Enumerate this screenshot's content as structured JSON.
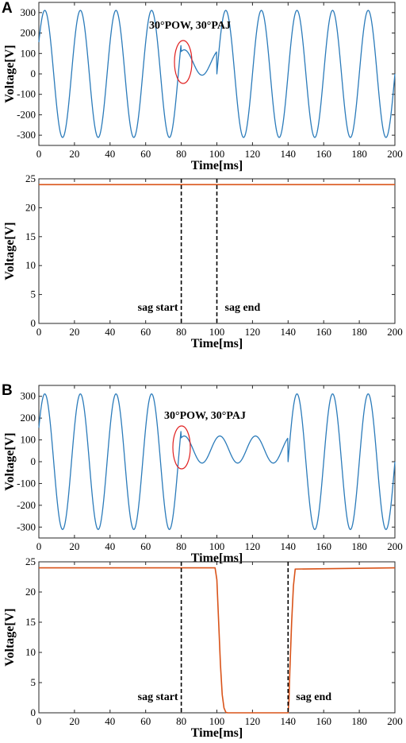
{
  "figure": {
    "panels": [
      "A",
      "B"
    ]
  },
  "chart_data": [
    {
      "type": "line",
      "panel": "A",
      "annotation": "30°POW, 30°PAJ",
      "xlabel": "Time[ms]",
      "ylabel": "Voltage[V]",
      "xlim": [
        0,
        200
      ],
      "ylim": [
        -350,
        350
      ],
      "xticks": [
        0,
        20,
        40,
        60,
        80,
        100,
        120,
        140,
        160,
        180,
        200
      ],
      "yticks": [
        -300,
        -200,
        -100,
        0,
        100,
        200,
        300
      ],
      "color": "#2b7bba",
      "series": [
        {
          "kind": "sine-sag",
          "amplitude": 311,
          "period_ms": 20,
          "phase_deg": 30,
          "sag_start_ms": 80,
          "sag_end_ms": 100,
          "sag_amplitude": 62,
          "sag_phase_deg": 60,
          "end_amplitude": 311
        }
      ]
    },
    {
      "type": "line",
      "panel": "A",
      "xlabel": "Time[ms]",
      "ylabel": "Voltage[V]",
      "xlim": [
        0,
        200
      ],
      "ylim": [
        0,
        25
      ],
      "xticks": [
        0,
        20,
        40,
        60,
        80,
        100,
        120,
        140,
        160,
        180,
        200
      ],
      "yticks": [
        0,
        5,
        10,
        15,
        20,
        25
      ],
      "color": "#d95319",
      "series": [
        {
          "x": [
            0,
            200
          ],
          "y": [
            24,
            24
          ]
        }
      ],
      "markers": [
        {
          "x": 80,
          "label": "sag start",
          "side": "left"
        },
        {
          "x": 100,
          "label": "sag end",
          "side": "right"
        }
      ]
    },
    {
      "type": "line",
      "panel": "B",
      "annotation": "30°POW, 30°PAJ",
      "xlabel": "Time[ms]",
      "ylabel": "Voltage[V]",
      "xlim": [
        0,
        200
      ],
      "ylim": [
        -350,
        350
      ],
      "xticks": [
        0,
        20,
        40,
        60,
        80,
        100,
        120,
        140,
        160,
        180,
        200
      ],
      "yticks": [
        -300,
        -200,
        -100,
        0,
        100,
        200,
        300
      ],
      "color": "#2b7bba",
      "series": [
        {
          "kind": "sine-sag",
          "amplitude": 311,
          "period_ms": 20,
          "phase_deg": 30,
          "sag_start_ms": 80,
          "sag_end_ms": 140,
          "sag_amplitude": 62,
          "sag_phase_deg": 60,
          "end_amplitude": 311
        }
      ]
    },
    {
      "type": "line",
      "panel": "B",
      "xlabel": "Time[ms]",
      "ylabel": "Voltage[V]",
      "xlim": [
        0,
        200
      ],
      "ylim": [
        0,
        25
      ],
      "xticks": [
        0,
        20,
        40,
        60,
        80,
        100,
        120,
        140,
        160,
        180,
        200
      ],
      "yticks": [
        0,
        5,
        10,
        15,
        20,
        25
      ],
      "color": "#d95319",
      "series": [
        {
          "x": [
            0,
            99,
            100,
            101,
            102,
            103,
            104,
            105,
            106,
            140,
            140.5,
            141,
            142,
            143,
            144,
            200
          ],
          "y": [
            24,
            24,
            22,
            15,
            8,
            3,
            0.8,
            0.1,
            0,
            0,
            2,
            7,
            15,
            21,
            23.8,
            24
          ]
        }
      ],
      "markers": [
        {
          "x": 80,
          "label": "sag start",
          "side": "left"
        },
        {
          "x": 140,
          "label": "sag end",
          "side": "right"
        }
      ]
    }
  ]
}
